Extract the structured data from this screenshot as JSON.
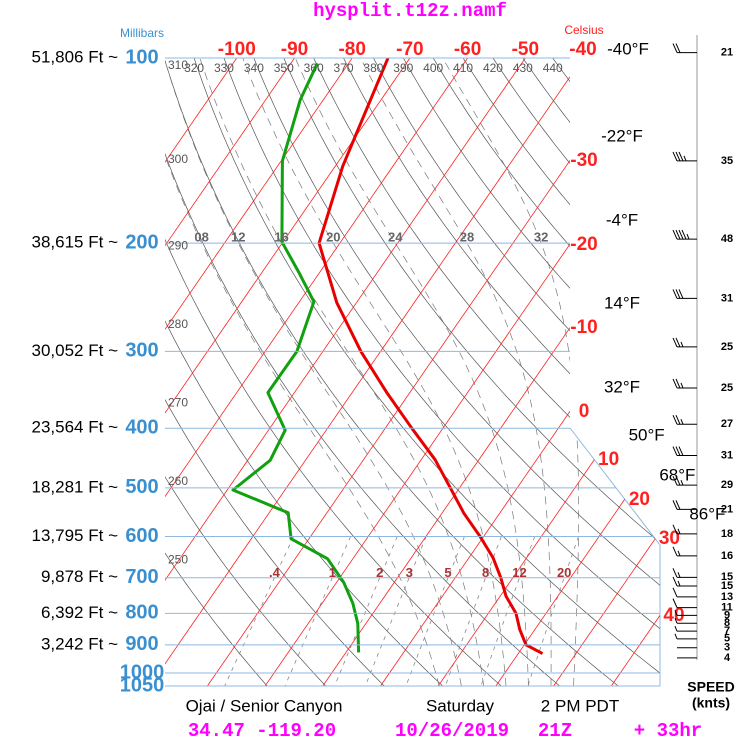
{
  "chart_data": {
    "type": "skewt",
    "title": "hysplit.t12z.namf",
    "pressure_axis_label": "Millibars",
    "temperature_axis_label": "Celsius",
    "plim": [
      100,
      1050
    ],
    "pressure_levels": [
      100,
      200,
      300,
      400,
      500,
      600,
      700,
      800,
      900,
      1000,
      1050
    ],
    "heights": [
      {
        "value": 51806,
        "label": "51,806 Ft ~"
      },
      {
        "value": 38615,
        "label": "38,615 Ft ~"
      },
      {
        "value": 30052,
        "label": "30,052 Ft ~"
      },
      {
        "value": 23564,
        "label": "23,564 Ft ~"
      },
      {
        "value": 18281,
        "label": "18,281 Ft ~"
      },
      {
        "value": 13795,
        "label": "13,795 Ft ~"
      },
      {
        "value": 9878,
        "label": "9,878 Ft ~"
      },
      {
        "value": 6392,
        "label": "6,392 Ft ~"
      },
      {
        "value": 3242,
        "label": "3,242 Ft ~"
      }
    ],
    "isotherms": [
      -100,
      -90,
      -80,
      -70,
      -60,
      -50,
      -40,
      -30,
      -20,
      -10,
      0,
      10,
      20,
      30,
      40
    ],
    "isotherm_color": "#ff2020",
    "fahrenheit": [
      {
        "value": -40,
        "label": "-40°F"
      },
      {
        "value": -22,
        "label": "-22°F"
      },
      {
        "value": -4,
        "label": "-4°F"
      },
      {
        "value": 14,
        "label": "14°F"
      },
      {
        "value": 32,
        "label": "32°F"
      },
      {
        "value": 50,
        "label": "50°F"
      },
      {
        "value": 68,
        "label": "68°F"
      },
      {
        "value": 86,
        "label": "86°F"
      }
    ],
    "dry_adiabats": [
      250,
      260,
      270,
      280,
      290,
      300,
      310,
      320,
      330,
      340,
      350,
      360,
      370,
      380,
      390,
      400,
      410,
      420,
      430,
      440
    ],
    "moist_adiabats": [
      {
        "value": 8,
        "label": "08"
      },
      12,
      16,
      20,
      24,
      28,
      32
    ],
    "mixing_ratios": [
      {
        "value": 0.4,
        "label": ".4"
      },
      1,
      2,
      3,
      5,
      8,
      12,
      20
    ],
    "series": [
      {
        "color": "#e80000",
        "pressure": [
          100,
          150,
          200,
          250,
          300,
          350,
          400,
          450,
          500,
          550,
          600,
          650,
          700,
          750,
          800,
          850,
          900,
          930
        ],
        "values": [
          -73.8,
          -68.7,
          -63.6,
          -53.4,
          -43.4,
          -34.0,
          -25.4,
          -17.6,
          -11.6,
          -6.2,
          -0.6,
          4.2,
          7.9,
          11.0,
          14.8,
          17.4,
          20.3,
          24.2
        ]
      },
      {
        "color": "#10a010",
        "pressure": [
          102,
          117,
          147,
          199,
          224,
          249,
          300,
          350,
          403,
          451,
          504,
          549,
          605,
          652,
          712,
          770,
          831,
          926
        ],
        "values": [
          -85.4,
          -84.0,
          -79.8,
          -70.2,
          -63.4,
          -57.5,
          -54.5,
          -54.6,
          -47.1,
          -46.1,
          -49.0,
          -36.7,
          -33.1,
          -24.4,
          -18.8,
          -14.7,
          -11.4,
          -7.8
        ]
      }
    ],
    "wind": {
      "pressure": [
        98,
        147,
        197,
        246,
        295,
        344,
        394,
        443,
        495,
        542,
        594,
        645,
        699,
        722,
        752,
        783,
        806,
        830,
        855,
        880,
        910,
        945
      ],
      "speed": [
        21,
        35,
        48,
        31,
        25,
        25,
        27,
        31,
        29,
        21,
        18,
        16,
        15,
        15,
        13,
        11,
        9,
        8,
        7,
        5,
        3,
        4
      ]
    },
    "wind_axis_label": "SPEED",
    "wind_unit_label": "(knts)",
    "footer": {
      "station": "Ojai / Senior Canyon",
      "day": "Saturday",
      "local_time": "2 PM PDT",
      "coordinates": "34.47 -119.20",
      "date": "10/26/2019",
      "run": "21Z",
      "forecast_hour": "+ 33hr"
    }
  }
}
